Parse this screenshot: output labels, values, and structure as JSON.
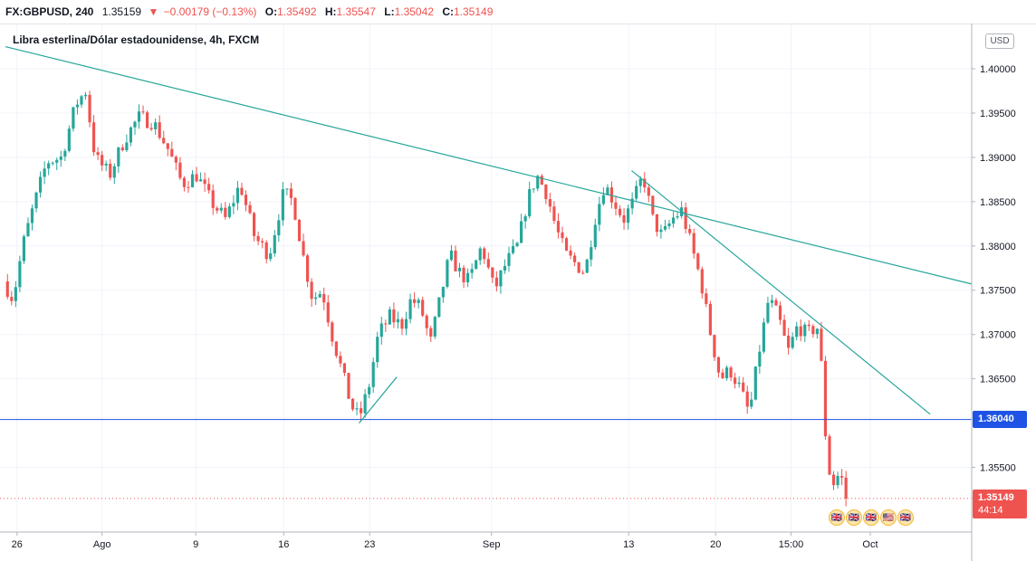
{
  "header": {
    "symbol": "FX:GBPUSD, 240",
    "price": "1.35159",
    "change_arrow": "▼",
    "change": "−0.00179 (−0.13%)",
    "o_label": "O:",
    "o_value": "1.35492",
    "h_label": "H:",
    "h_value": "1.35547",
    "l_label": "L:",
    "l_value": "1.35042",
    "c_label": "C:",
    "c_value": "1.35149"
  },
  "legend": {
    "title": "Libra esterlina/Dólar estadounidense, 4h, FXCM"
  },
  "currency_badge": "USD",
  "price_labels": {
    "level": "1.36040",
    "last": "1.35149",
    "countdown": "44:14"
  },
  "events": [
    "🇬🇧",
    "🇬🇧",
    "🇬🇧",
    "🇺🇸",
    "🇬🇧"
  ],
  "colors": {
    "up": "#26a69a",
    "down": "#ef5350",
    "trendline": "#26a69a",
    "support": "#1e53e5",
    "grid": "#f0f3fa",
    "last_price": "#ef5350"
  },
  "chart_data": {
    "type": "candlestick",
    "title": "Libra esterlina/Dólar estadounidense, 4h, FXCM",
    "symbol": "FX:GBPUSD",
    "interval": "4h",
    "y_ticks": [
      "1.35500",
      "1.36500",
      "1.37000",
      "1.37500",
      "1.38000",
      "1.38500",
      "1.39000",
      "1.39500",
      "1.40000"
    ],
    "x_ticks": [
      {
        "label": "26",
        "t": 0.012
      },
      {
        "label": "Ago",
        "t": 0.1
      },
      {
        "label": "9",
        "t": 0.197
      },
      {
        "label": "16",
        "t": 0.288
      },
      {
        "label": "23",
        "t": 0.377
      },
      {
        "label": "Sep",
        "t": 0.503
      },
      {
        "label": "13",
        "t": 0.645
      },
      {
        "label": "20",
        "t": 0.735
      },
      {
        "label": "15:00",
        "t": 0.813
      },
      {
        "label": "Oct",
        "t": 0.895
      }
    ],
    "ylim": [
      1.3477,
      1.4047
    ],
    "xlim": [
      0,
      1
    ],
    "support_level": 1.3604,
    "last_price": 1.35149,
    "ohlc_waypoints": [
      [
        0.0,
        1.376
      ],
      [
        0.01,
        1.374
      ],
      [
        0.02,
        1.38
      ],
      [
        0.03,
        1.384
      ],
      [
        0.045,
        1.3895
      ],
      [
        0.06,
        1.39
      ],
      [
        0.075,
        1.396
      ],
      [
        0.085,
        1.3975
      ],
      [
        0.095,
        1.39
      ],
      [
        0.11,
        1.388
      ],
      [
        0.125,
        1.392
      ],
      [
        0.14,
        1.3945
      ],
      [
        0.155,
        1.394
      ],
      [
        0.17,
        1.391
      ],
      [
        0.185,
        1.387
      ],
      [
        0.2,
        1.388
      ],
      [
        0.215,
        1.385
      ],
      [
        0.23,
        1.383
      ],
      [
        0.245,
        1.387
      ],
      [
        0.26,
        1.381
      ],
      [
        0.275,
        1.379
      ],
      [
        0.29,
        1.386
      ],
      [
        0.3,
        1.385
      ],
      [
        0.31,
        1.379
      ],
      [
        0.32,
        1.374
      ],
      [
        0.33,
        1.375
      ],
      [
        0.34,
        1.37
      ],
      [
        0.35,
        1.366
      ],
      [
        0.36,
        1.362
      ],
      [
        0.368,
        1.3605
      ],
      [
        0.378,
        1.364
      ],
      [
        0.388,
        1.37
      ],
      [
        0.4,
        1.372
      ],
      [
        0.412,
        1.371
      ],
      [
        0.422,
        1.374
      ],
      [
        0.432,
        1.373
      ],
      [
        0.442,
        1.369
      ],
      [
        0.452,
        1.374
      ],
      [
        0.462,
        1.379
      ],
      [
        0.472,
        1.377
      ],
      [
        0.482,
        1.376
      ],
      [
        0.495,
        1.38
      ],
      [
        0.508,
        1.375
      ],
      [
        0.52,
        1.378
      ],
      [
        0.532,
        1.38
      ],
      [
        0.542,
        1.385
      ],
      [
        0.552,
        1.388
      ],
      [
        0.562,
        1.386
      ],
      [
        0.572,
        1.382
      ],
      [
        0.582,
        1.379
      ],
      [
        0.592,
        1.378
      ],
      [
        0.602,
        1.377
      ],
      [
        0.612,
        1.383
      ],
      [
        0.622,
        1.387
      ],
      [
        0.632,
        1.385
      ],
      [
        0.642,
        1.383
      ],
      [
        0.652,
        1.385
      ],
      [
        0.662,
        1.388
      ],
      [
        0.672,
        1.383
      ],
      [
        0.682,
        1.381
      ],
      [
        0.692,
        1.383
      ],
      [
        0.702,
        1.384
      ],
      [
        0.712,
        1.38
      ],
      [
        0.722,
        1.376
      ],
      [
        0.732,
        1.37
      ],
      [
        0.742,
        1.365
      ],
      [
        0.752,
        1.366
      ],
      [
        0.762,
        1.364
      ],
      [
        0.772,
        1.361
      ],
      [
        0.782,
        1.368
      ],
      [
        0.792,
        1.374
      ],
      [
        0.802,
        1.372
      ],
      [
        0.812,
        1.368
      ],
      [
        0.822,
        1.371
      ],
      [
        0.832,
        1.37
      ],
      [
        0.842,
        1.371
      ],
      [
        0.848,
        1.365
      ],
      [
        0.852,
        1.356
      ],
      [
        0.858,
        1.353
      ],
      [
        0.866,
        1.3545
      ],
      [
        0.872,
        1.3515
      ]
    ],
    "trendlines": [
      {
        "name": "",
        "x1": 0.0,
        "y1": 1.4025,
        "x2": 1.0,
        "y2": 1.3757
      },
      {
        "name": "",
        "x1": 0.648,
        "y1": 1.3885,
        "x2": 0.957,
        "y2": 1.361
      },
      {
        "name": "",
        "x1": 0.366,
        "y1": 1.36,
        "x2": 0.405,
        "y2": 1.3652
      }
    ]
  }
}
